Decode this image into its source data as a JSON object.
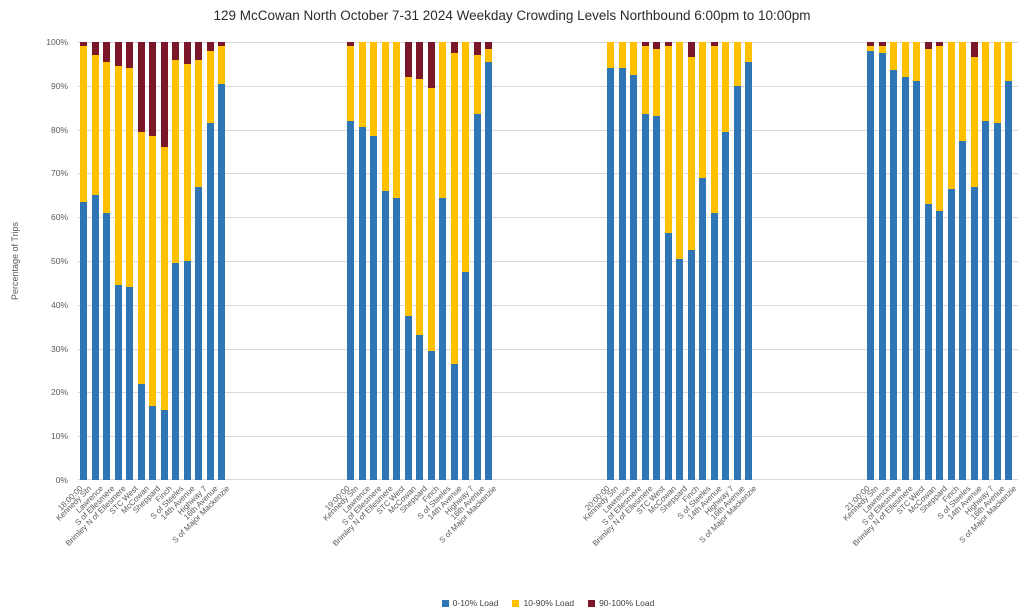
{
  "chart_data": {
    "type": "bar",
    "stacked": true,
    "percent_stacked": true,
    "title": "129 McCowan North October 7-31 2024  Weekday Crowding Levels Northbound 6:00pm to 10:00pm",
    "ylabel": "Percentage of Trips",
    "ylim": [
      0,
      100
    ],
    "yticks": [
      0,
      10,
      20,
      30,
      40,
      50,
      60,
      70,
      80,
      90,
      100
    ],
    "ytick_suffix": "%",
    "grid": true,
    "legend_position": "bottom",
    "series": [
      {
        "name": "0-10% Load",
        "color": "#2E75B6"
      },
      {
        "name": "10-90% Load",
        "color": "#FFC000"
      },
      {
        "name": "90-100% Load",
        "color": "#7B1728"
      }
    ],
    "stops": [
      "Kennedy Stn",
      "Lawrence",
      "S of Ellesmere",
      "Brimley N of Ellesmere",
      "STC West",
      "McCowan",
      "Sheppard",
      "Finch",
      "S of Steeles",
      "14th Avenue",
      "Highway 7",
      "16th Avenue",
      "S of Major Mackenzie"
    ],
    "groups": [
      {
        "time": "18:00:00",
        "load_0_10": [
          63.5,
          65,
          61,
          44.5,
          44,
          22,
          17,
          16,
          49.5,
          50,
          67,
          81.5,
          90.5
        ],
        "load_10_90": [
          35.5,
          32,
          34.5,
          50,
          50,
          57.5,
          61.5,
          60,
          46.5,
          45,
          29,
          16.5,
          8.5
        ],
        "load_90_100": [
          1,
          3,
          4.5,
          5.5,
          6,
          20.5,
          21.5,
          24,
          4,
          5,
          4,
          2,
          1
        ]
      },
      {
        "time": "19:00:00",
        "load_0_10": [
          82,
          80.5,
          78.5,
          66,
          64.5,
          37.5,
          33,
          29.5,
          64.5,
          26.5,
          47.5,
          83.5,
          95.5
        ],
        "load_10_90": [
          17,
          19.5,
          21.5,
          34,
          35.5,
          54.5,
          58.5,
          60,
          35.5,
          71,
          52.5,
          13.5,
          3
        ],
        "load_90_100": [
          1,
          0,
          0,
          0,
          0,
          8,
          8.5,
          10.5,
          0,
          2.5,
          0,
          3,
          1.5
        ]
      },
      {
        "time": "20:00:00",
        "load_0_10": [
          94,
          94,
          92.5,
          83.5,
          83,
          56.5,
          50.5,
          52.5,
          69,
          61,
          79.5,
          90,
          95.5
        ],
        "load_10_90": [
          6,
          6,
          7.5,
          15.5,
          15.5,
          42.5,
          49.5,
          44,
          31,
          38,
          20.5,
          10,
          4.5
        ],
        "load_90_100": [
          0,
          0,
          0,
          1,
          1.5,
          1,
          0,
          3.5,
          0,
          1,
          0,
          0,
          0
        ]
      },
      {
        "time": "21:00:00",
        "load_0_10": [
          98,
          97.5,
          93.5,
          92,
          91,
          63,
          61.5,
          66.5,
          77.5,
          67,
          82,
          81.5,
          91
        ],
        "load_10_90": [
          1,
          1.5,
          6.5,
          8,
          9,
          35.5,
          37.5,
          33.5,
          22.5,
          29.5,
          18,
          18.5,
          9
        ],
        "load_90_100": [
          1,
          1,
          0,
          0,
          0,
          1.5,
          1,
          0,
          0,
          3.5,
          0,
          0,
          0
        ]
      }
    ]
  }
}
